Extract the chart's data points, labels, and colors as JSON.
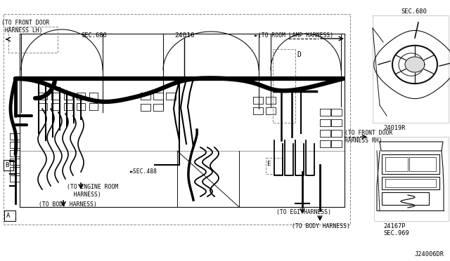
{
  "bg_color": "#ffffff",
  "fig_width": 6.4,
  "fig_height": 3.72,
  "dpi": 100,
  "labels": {
    "to_front_door_lh": "(TO FRONT DOOR\n HARNESS LH)",
    "sec680_left": "SEC.680",
    "part_24010": "24010",
    "to_room_lamp": "►(TO ROOM LAMP HARNESS)",
    "sec680_right": "SEC.680",
    "to_front_door_rh": "(TO FRONT DOOR\nHARNESS RH)",
    "part_24019r": "24019R",
    "part_24167p": "24167P",
    "sec969": "SEC.969",
    "sec488": "►SEC.488",
    "to_engine_room": "(TO ENGINE ROOM\n  HARNESS)",
    "to_body_harness_left": "(TO BODY HARNESS)",
    "to_egi_harness": "(TO EGI HARNESS)",
    "to_body_harness_right": "(TO BODY HARNESS)",
    "label_a": "A",
    "label_b": "B",
    "label_d": "D",
    "label_e": "E",
    "diagram_code": "J24006DR"
  },
  "main_harness_lw": 4.5,
  "secondary_lw": 2.0,
  "thin_lw": 1.0,
  "outline_color": "#111111",
  "text_color": "#000000",
  "gray_color": "#888888"
}
